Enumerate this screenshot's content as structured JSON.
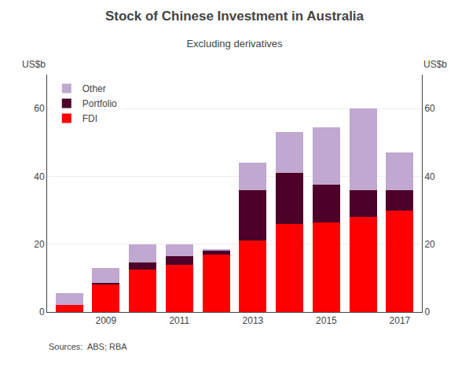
{
  "chart_data": {
    "type": "bar",
    "title": "Stock of Chinese Investment in Australia",
    "subtitle": "Excluding derivatives",
    "ylabel": "US$b",
    "y2label": "US$b",
    "annotations": [
      "Sources:  ABS; RBA"
    ],
    "x": [
      2008,
      2009,
      2010,
      2011,
      2012,
      2013,
      2014,
      2015,
      2016,
      2017
    ],
    "series": [
      {
        "name": "FDI",
        "color": "#ff0000",
        "values": [
          2.0,
          8.0,
          12.5,
          14.0,
          17.0,
          21.0,
          26.0,
          26.5,
          28.0,
          30.0
        ]
      },
      {
        "name": "Portfolio",
        "color": "#4d0028",
        "values": [
          0.0,
          0.5,
          2.0,
          2.5,
          1.0,
          15.0,
          15.0,
          11.0,
          8.0,
          6.0
        ]
      },
      {
        "name": "Other",
        "color": "#c0a8d0",
        "values": [
          3.5,
          4.5,
          5.5,
          3.5,
          0.5,
          8.0,
          12.0,
          17.0,
          24.0,
          11.0
        ]
      }
    ],
    "xlim": [
      2007.4,
      2017.6
    ],
    "xticks": [
      2009,
      2011,
      2013,
      2015,
      2017
    ],
    "ylim": [
      0,
      70
    ],
    "yticks": [
      0,
      20,
      40,
      60
    ],
    "y2lim": [
      0,
      70
    ],
    "y2ticks": [
      0,
      20,
      40,
      60
    ],
    "stacked": true,
    "grid": true,
    "legend": "upper left"
  }
}
